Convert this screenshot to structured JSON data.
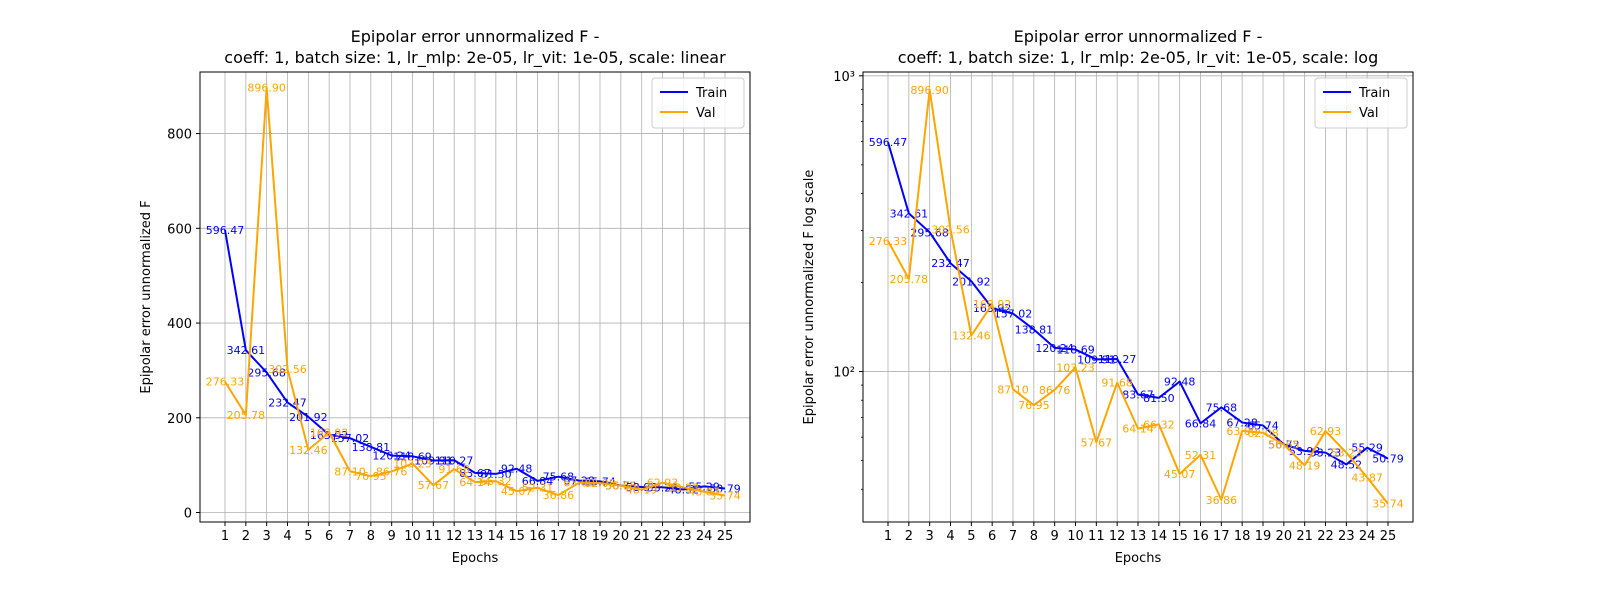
{
  "chart_data": [
    {
      "type": "line",
      "title": "Epipolar error unnormalized F -",
      "subtitle": "coeff: 1, batch size: 1, lr_mlp: 2e-05, lr_vit: 1e-05, scale: linear",
      "xlabel": "Epochs",
      "ylabel": "Epipolar error unnormalized F",
      "yscale": "linear",
      "ylim": [
        -20,
        930
      ],
      "yticks": [
        0,
        200,
        400,
        600,
        800
      ],
      "ytick_labels": [
        "0",
        "200",
        "400",
        "600",
        "800"
      ],
      "grid": true,
      "legend_position": "top-right",
      "x": [
        1,
        2,
        3,
        4,
        5,
        6,
        7,
        8,
        9,
        10,
        11,
        12,
        13,
        14,
        15,
        16,
        17,
        18,
        19,
        20,
        21,
        22,
        23,
        24,
        25
      ],
      "series": [
        {
          "name": "Train",
          "color": "#0000ff",
          "values": [
            596.47,
            342.61,
            295.68,
            232.47,
            201.92,
            163.92,
            157.02,
            138.81,
            120.24,
            118.69,
            109.91,
            110.27,
            83.67,
            81.5,
            92.48,
            66.84,
            75.68,
            67.28,
            65.74,
            56.72,
            53.93,
            53.23,
            48.52,
            55.29,
            50.79
          ],
          "labels": [
            "596.47",
            "342.61",
            "295.68",
            "232.47",
            "201.92",
            "163.92",
            "157.02",
            "138.81",
            "120.24",
            "118.69",
            "109.91",
            "110.27",
            "83.67",
            "81.50",
            "92.48",
            "66.84",
            "75.68",
            "67.28",
            "65.74",
            "56.72",
            "53.93",
            "53.23",
            "48.52",
            "55.29",
            "50.79"
          ]
        },
        {
          "name": "Val",
          "color": "#ffa500",
          "values": [
            276.33,
            205.78,
            896.9,
            302.56,
            132.46,
            168.92,
            87.1,
            76.95,
            86.76,
            103.23,
            57.67,
            91.68,
            64.14,
            66.32,
            45.07,
            52.31,
            36.86,
            63.0,
            62.08,
            56.65,
            48.19,
            62.93,
            53.23,
            43.87,
            35.74
          ],
          "labels": [
            "276.33",
            "205.78",
            "896.90",
            "302.56",
            "132.46",
            "168.92",
            "87.10",
            "76.95",
            "86.76",
            "103.23",
            "57.67",
            "91.68",
            "64.14",
            "66.32",
            "45.07",
            "52.31",
            "36.86",
            "63.00",
            "62.08",
            "56.65",
            "48.19",
            "62.93",
            "53.23",
            "43.87",
            "35.74"
          ]
        }
      ]
    },
    {
      "type": "line",
      "title": "Epipolar error unnormalized F -",
      "subtitle": "coeff: 1, batch size: 1, lr_mlp: 2e-05, lr_vit: 1e-05, scale: log",
      "xlabel": "Epochs",
      "ylabel": "Epipolar error unnormalized F log scale",
      "yscale": "log",
      "ylim": [
        31,
        1030
      ],
      "yticks": [
        100,
        1000
      ],
      "ytick_labels": [
        "10²",
        "10³"
      ],
      "grid": true,
      "legend_position": "top-right",
      "x": [
        1,
        2,
        3,
        4,
        5,
        6,
        7,
        8,
        9,
        10,
        11,
        12,
        13,
        14,
        15,
        16,
        17,
        18,
        19,
        20,
        21,
        22,
        23,
        24,
        25
      ],
      "series": [
        {
          "name": "Train",
          "color": "#0000ff",
          "values": [
            596.47,
            342.61,
            295.68,
            232.47,
            201.92,
            163.92,
            157.02,
            138.81,
            120.24,
            118.69,
            109.91,
            110.27,
            83.67,
            81.5,
            92.48,
            66.84,
            75.68,
            67.28,
            65.74,
            56.72,
            53.93,
            53.23,
            48.52,
            55.29,
            50.79
          ],
          "labels": [
            "596.47",
            "342.61",
            "295.68",
            "232.47",
            "201.92",
            "163.92",
            "157.02",
            "138.81",
            "120.24",
            "118.69",
            "109.91",
            "110.27",
            "83.67",
            "81.50",
            "92.48",
            "66.84",
            "75.68",
            "67.28",
            "65.74",
            "56.72",
            "53.93",
            "53.23",
            "48.52",
            "55.29",
            "50.79"
          ]
        },
        {
          "name": "Val",
          "color": "#ffa500",
          "values": [
            276.33,
            205.78,
            896.9,
            302.56,
            132.46,
            168.92,
            87.1,
            76.95,
            86.76,
            103.23,
            57.67,
            91.68,
            64.14,
            66.32,
            45.07,
            52.31,
            36.86,
            63.0,
            62.08,
            56.65,
            48.19,
            62.93,
            53.23,
            43.87,
            35.74
          ],
          "labels": [
            "276.33",
            "205.78",
            "896.90",
            "302.56",
            "132.46",
            "168.92",
            "87.10",
            "76.95",
            "86.76",
            "103.23",
            "57.67",
            "91.68",
            "64.14",
            "66.32",
            "45.07",
            "52.31",
            "36.86",
            "63.00",
            "62.08",
            "56.65",
            "48.19",
            "62.93",
            "53.23",
            "43.87",
            "35.74"
          ]
        }
      ]
    }
  ]
}
